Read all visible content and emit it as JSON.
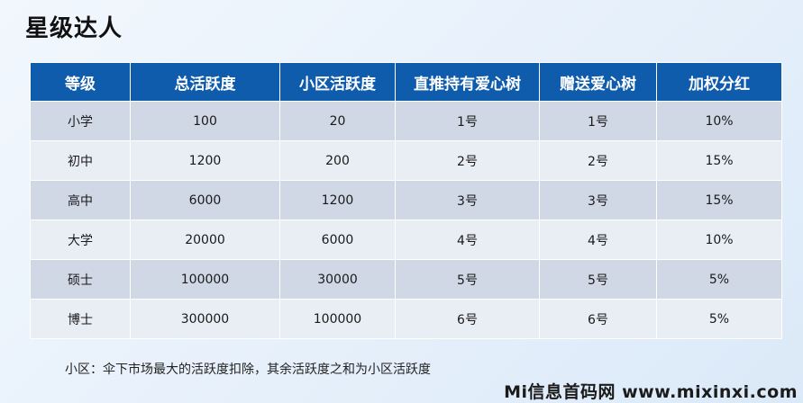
{
  "title": "星级达人",
  "table": {
    "headers": [
      "等级",
      "总活跃度",
      "小区活跃度",
      "直推持有爱心树",
      "赠送爱心树",
      "加权分红"
    ],
    "rows": [
      [
        "小学",
        "100",
        "20",
        "1号",
        "1号",
        "10%"
      ],
      [
        "初中",
        "1200",
        "200",
        "2号",
        "2号",
        "15%"
      ],
      [
        "高中",
        "6000",
        "1200",
        "3号",
        "3号",
        "15%"
      ],
      [
        "大学",
        "20000",
        "6000",
        "4号",
        "4号",
        "10%"
      ],
      [
        "硕士",
        "100000",
        "30000",
        "5号",
        "5号",
        "5%"
      ],
      [
        "博士",
        "300000",
        "100000",
        "6号",
        "6号",
        "5%"
      ]
    ]
  },
  "footnote": "小区：伞下市场最大的活跃度扣除，其余活跃度之和为小区活跃度",
  "watermark": "Mi信息首码网 www.mixinxi.com",
  "colors": {
    "header_bg": "#0f5cad",
    "row_dark": "#d0d8e6",
    "row_light": "#e9edf4"
  }
}
